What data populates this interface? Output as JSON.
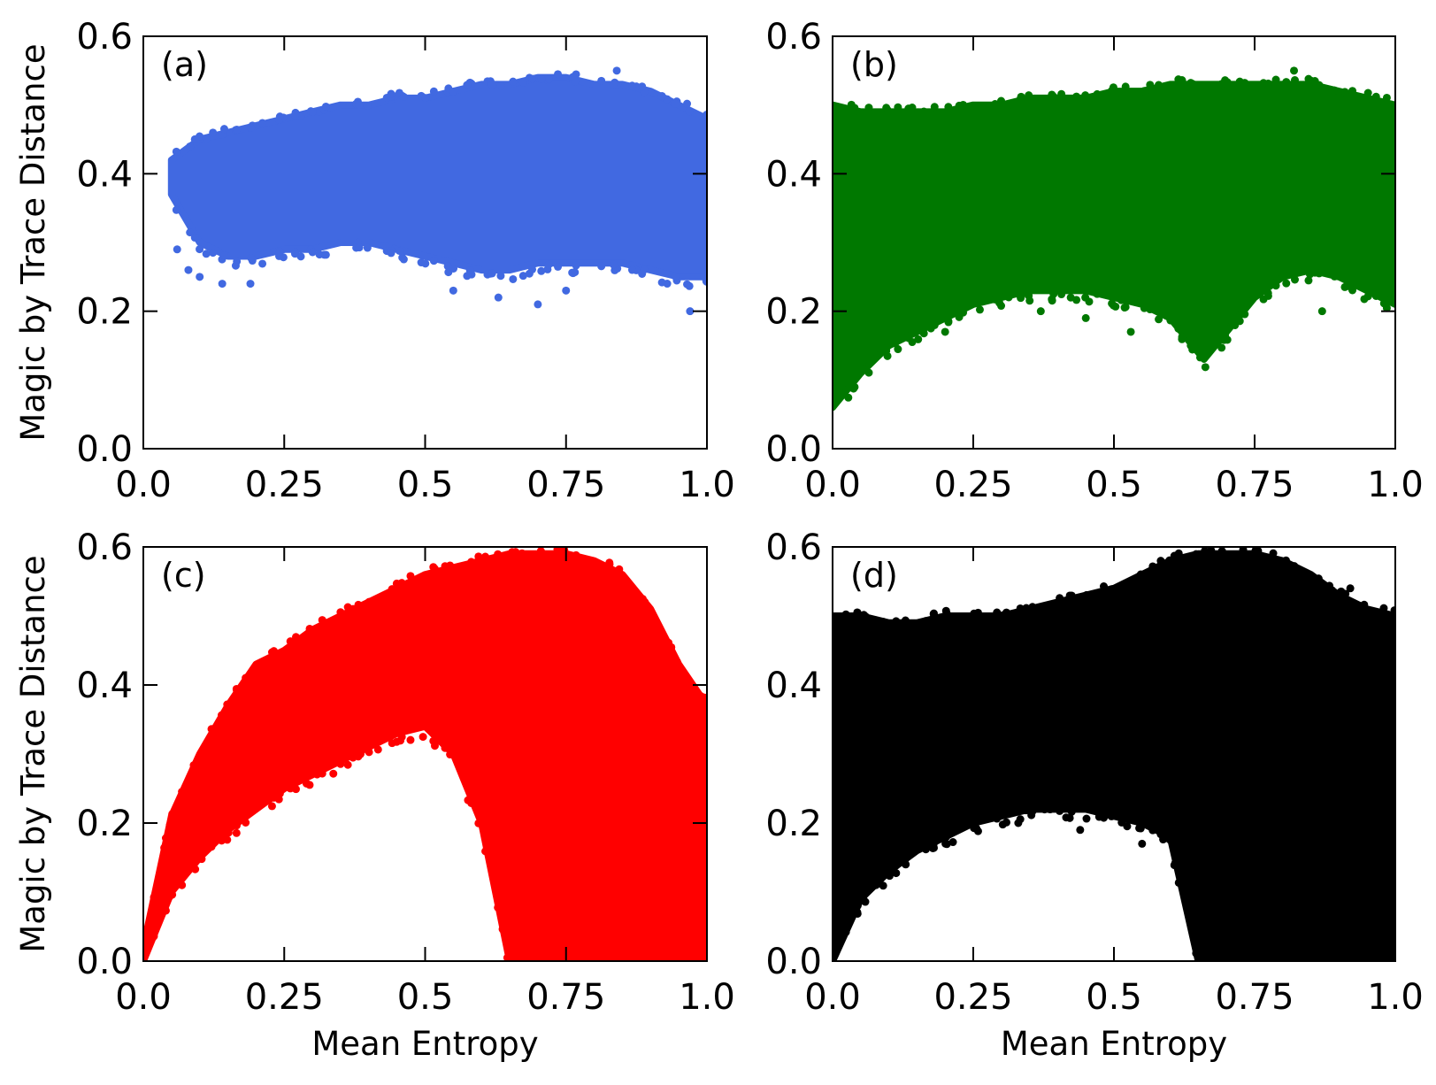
{
  "figure": {
    "background": "#ffffff"
  },
  "chart_data": [
    {
      "id": "a",
      "type": "scatter",
      "panel_label": "(a)",
      "color": "#4169e1",
      "marker": "dot",
      "xlabel": "",
      "ylabel": "Magic by Trace Distance",
      "xlim": [
        0.0,
        1.0
      ],
      "ylim": [
        0.0,
        0.6
      ],
      "xticks": [
        0.0,
        0.25,
        0.5,
        0.75,
        1.0
      ],
      "xtick_labels": [
        "0.0",
        "0.25",
        "0.5",
        "0.75",
        "1.0"
      ],
      "yticks": [
        0.0,
        0.2,
        0.4,
        0.6
      ],
      "ytick_labels": [
        "0.0",
        "0.2",
        "0.4",
        "0.6"
      ],
      "envelope": {
        "x": [
          0.05,
          0.1,
          0.15,
          0.2,
          0.25,
          0.3,
          0.35,
          0.4,
          0.45,
          0.5,
          0.55,
          0.6,
          0.65,
          0.7,
          0.75,
          0.8,
          0.85,
          0.9,
          0.95,
          1.0
        ],
        "upper": [
          0.42,
          0.45,
          0.46,
          0.47,
          0.48,
          0.49,
          0.5,
          0.5,
          0.51,
          0.51,
          0.52,
          0.53,
          0.53,
          0.54,
          0.54,
          0.53,
          0.53,
          0.52,
          0.5,
          0.48
        ],
        "lower": [
          0.37,
          0.3,
          0.28,
          0.28,
          0.29,
          0.29,
          0.3,
          0.3,
          0.29,
          0.28,
          0.27,
          0.26,
          0.26,
          0.27,
          0.27,
          0.27,
          0.27,
          0.26,
          0.25,
          0.25
        ]
      },
      "outliers": [
        [
          0.06,
          0.29
        ],
        [
          0.08,
          0.26
        ],
        [
          0.1,
          0.25
        ],
        [
          0.14,
          0.24
        ],
        [
          0.19,
          0.24
        ],
        [
          0.55,
          0.23
        ],
        [
          0.63,
          0.22
        ],
        [
          0.7,
          0.21
        ],
        [
          0.75,
          0.23
        ],
        [
          0.97,
          0.2
        ],
        [
          0.84,
          0.55
        ]
      ]
    },
    {
      "id": "b",
      "type": "scatter",
      "panel_label": "(b)",
      "color": "#007800",
      "marker": "dot",
      "xlabel": "",
      "ylabel": "",
      "xlim": [
        0.0,
        1.0
      ],
      "ylim": [
        0.0,
        0.6
      ],
      "xticks": [
        0.0,
        0.25,
        0.5,
        0.75,
        1.0
      ],
      "xtick_labels": [
        "0.0",
        "0.25",
        "0.5",
        "0.75",
        "1.0"
      ],
      "yticks": [
        0.0,
        0.2,
        0.4,
        0.6
      ],
      "ytick_labels": [
        "0.0",
        "0.2",
        "0.4",
        "0.6"
      ],
      "envelope": {
        "x": [
          0.0,
          0.05,
          0.1,
          0.15,
          0.2,
          0.25,
          0.3,
          0.35,
          0.4,
          0.45,
          0.5,
          0.55,
          0.6,
          0.63,
          0.66,
          0.7,
          0.75,
          0.8,
          0.85,
          0.9,
          0.95,
          1.0
        ],
        "upper": [
          0.5,
          0.49,
          0.49,
          0.49,
          0.49,
          0.5,
          0.5,
          0.51,
          0.51,
          0.51,
          0.52,
          0.52,
          0.53,
          0.53,
          0.53,
          0.53,
          0.53,
          0.53,
          0.53,
          0.52,
          0.51,
          0.5
        ],
        "lower": [
          0.06,
          0.11,
          0.15,
          0.17,
          0.19,
          0.21,
          0.22,
          0.23,
          0.23,
          0.23,
          0.22,
          0.21,
          0.19,
          0.16,
          0.13,
          0.17,
          0.22,
          0.25,
          0.26,
          0.25,
          0.23,
          0.21
        ]
      },
      "outliers": [
        [
          0.2,
          0.17
        ],
        [
          0.37,
          0.2
        ],
        [
          0.45,
          0.19
        ],
        [
          0.53,
          0.17
        ],
        [
          0.87,
          0.2
        ],
        [
          0.82,
          0.55
        ]
      ]
    },
    {
      "id": "c",
      "type": "scatter",
      "panel_label": "(c)",
      "color": "#ff0000",
      "marker": "dot",
      "xlabel": "Mean Entropy",
      "ylabel": "Magic by Trace Distance",
      "xlim": [
        0.0,
        1.0
      ],
      "ylim": [
        0.0,
        0.6
      ],
      "xticks": [
        0.0,
        0.25,
        0.5,
        0.75,
        1.0
      ],
      "xtick_labels": [
        "0.0",
        "0.25",
        "0.5",
        "0.75",
        "1.0"
      ],
      "yticks": [
        0.0,
        0.2,
        0.4,
        0.6
      ],
      "ytick_labels": [
        "0.0",
        "0.2",
        "0.4",
        "0.6"
      ],
      "envelope": {
        "x": [
          0.0,
          0.05,
          0.1,
          0.15,
          0.2,
          0.25,
          0.3,
          0.35,
          0.4,
          0.45,
          0.5,
          0.55,
          0.6,
          0.65,
          0.7,
          0.75,
          0.8,
          0.85,
          0.9,
          0.95,
          1.0
        ],
        "upper": [
          0.02,
          0.21,
          0.3,
          0.37,
          0.43,
          0.45,
          0.48,
          0.5,
          0.52,
          0.54,
          0.56,
          0.57,
          0.58,
          0.59,
          0.59,
          0.59,
          0.58,
          0.56,
          0.51,
          0.43,
          0.37
        ],
        "lower": [
          0.0,
          0.1,
          0.15,
          0.19,
          0.22,
          0.25,
          0.27,
          0.29,
          0.31,
          0.33,
          0.34,
          0.3,
          0.2,
          0.0,
          0.0,
          0.0,
          0.0,
          0.0,
          0.0,
          0.0,
          0.0
        ]
      },
      "outliers": []
    },
    {
      "id": "d",
      "type": "scatter",
      "panel_label": "(d)",
      "color": "#000000",
      "marker": "dot",
      "xlabel": "Mean Entropy",
      "ylabel": "",
      "xlim": [
        0.0,
        1.0
      ],
      "ylim": [
        0.0,
        0.6
      ],
      "xticks": [
        0.0,
        0.25,
        0.5,
        0.75,
        1.0
      ],
      "xtick_labels": [
        "0.0",
        "0.25",
        "0.5",
        "0.75",
        "1.0"
      ],
      "yticks": [
        0.0,
        0.2,
        0.4,
        0.6
      ],
      "ytick_labels": [
        "0.0",
        "0.2",
        "0.4",
        "0.6"
      ],
      "envelope": {
        "x": [
          0.0,
          0.05,
          0.1,
          0.15,
          0.2,
          0.25,
          0.3,
          0.35,
          0.4,
          0.45,
          0.5,
          0.55,
          0.6,
          0.65,
          0.7,
          0.75,
          0.8,
          0.85,
          0.9,
          0.95,
          1.0
        ],
        "upper": [
          0.5,
          0.5,
          0.49,
          0.49,
          0.5,
          0.5,
          0.5,
          0.51,
          0.52,
          0.53,
          0.54,
          0.56,
          0.58,
          0.59,
          0.59,
          0.59,
          0.58,
          0.56,
          0.53,
          0.51,
          0.5
        ],
        "lower": [
          0.0,
          0.09,
          0.13,
          0.16,
          0.18,
          0.2,
          0.21,
          0.22,
          0.22,
          0.22,
          0.21,
          0.2,
          0.18,
          0.0,
          0.0,
          0.0,
          0.0,
          0.0,
          0.0,
          0.0,
          0.0
        ]
      },
      "outliers": [
        [
          0.13,
          0.14
        ],
        [
          0.2,
          0.18
        ],
        [
          0.33,
          0.2
        ],
        [
          0.44,
          0.19
        ],
        [
          0.55,
          0.17
        ],
        [
          0.8,
          0.2
        ],
        [
          0.87,
          0.2
        ],
        [
          0.92,
          0.54
        ]
      ]
    }
  ]
}
